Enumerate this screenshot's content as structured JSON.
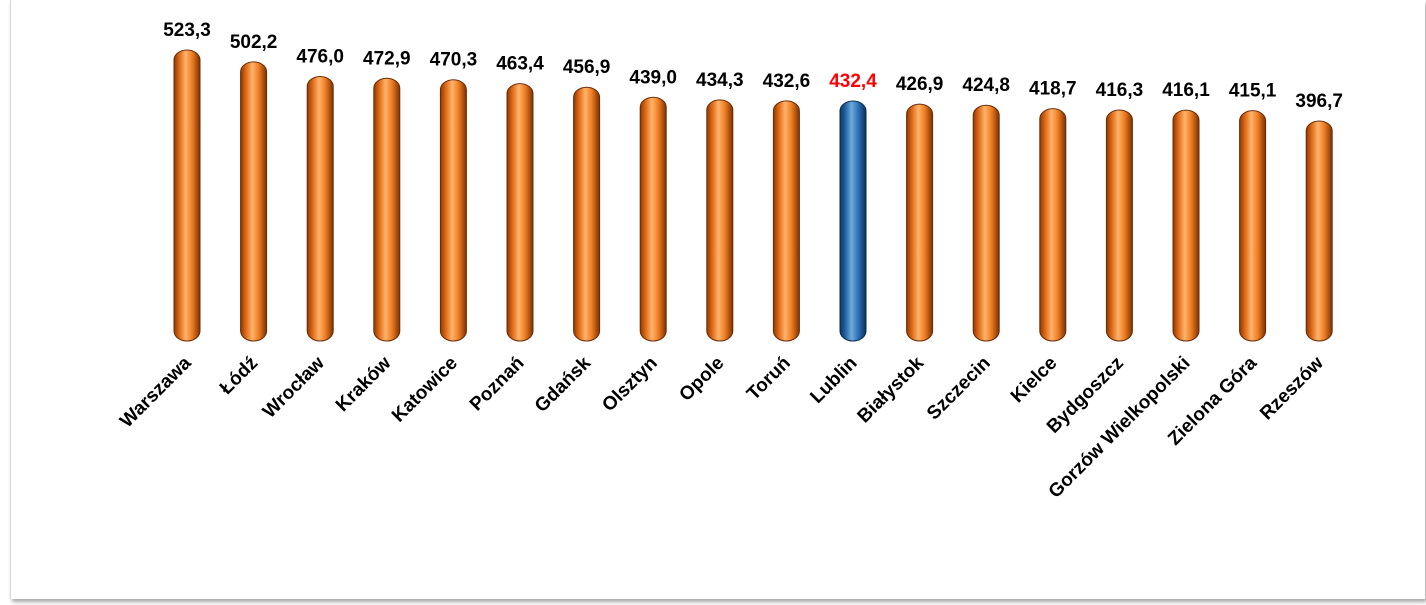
{
  "chart_data": {
    "type": "bar",
    "title": "",
    "xlabel": "",
    "ylabel": "",
    "categories": [
      "Warszawa",
      "Łódź",
      "Wrocław",
      "Kraków",
      "Katowice",
      "Poznań",
      "Gdańsk",
      "Olsztyn",
      "Opole",
      "Toruń",
      "Lublin",
      "Białystok",
      "Szczecin",
      "Kielce",
      "Bydgoszcz",
      "Gorzów Wielkopolski",
      "Zielona Góra",
      "Rzeszów"
    ],
    "values": [
      523.3,
      502.2,
      476.0,
      472.9,
      470.3,
      463.4,
      456.9,
      439.0,
      434.3,
      432.6,
      432.4,
      426.9,
      424.8,
      418.7,
      416.3,
      416.1,
      415.1,
      396.7
    ],
    "value_labels": [
      "523,3",
      "502,2",
      "476,0",
      "472,9",
      "470,3",
      "463,4",
      "456,9",
      "439,0",
      "434,3",
      "432,6",
      "432,4",
      "426,9",
      "424,8",
      "418,7",
      "416,3",
      "416,1",
      "415,1",
      "396,7"
    ],
    "highlight_category": "Lublin",
    "colors": {
      "bar": "#e8741e",
      "bar_highlight": "#1f6db4",
      "label": "#000000",
      "label_highlight": "#ff0000"
    },
    "grid": false,
    "legend": "none"
  }
}
